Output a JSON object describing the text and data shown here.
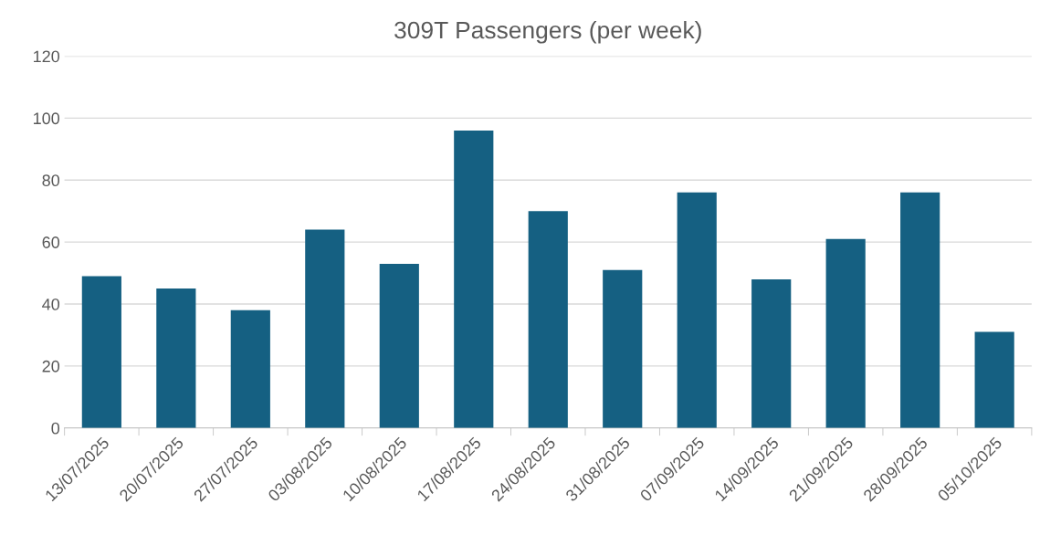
{
  "chart_data": {
    "type": "bar",
    "title": "309T Passengers (per week)",
    "categories": [
      "13/07/2025",
      "20/07/2025",
      "27/07/2025",
      "03/08/2025",
      "10/08/2025",
      "17/08/2025",
      "24/08/2025",
      "31/08/2025",
      "07/09/2025",
      "14/09/2025",
      "21/09/2025",
      "28/09/2025",
      "05/10/2025"
    ],
    "values": [
      49,
      45,
      38,
      64,
      53,
      96,
      70,
      51,
      76,
      48,
      61,
      76,
      31
    ],
    "color": "#156082",
    "ylim": [
      0,
      120
    ],
    "yticks": [
      0,
      20,
      40,
      60,
      80,
      100,
      120
    ],
    "grid": "y",
    "legend": false
  }
}
